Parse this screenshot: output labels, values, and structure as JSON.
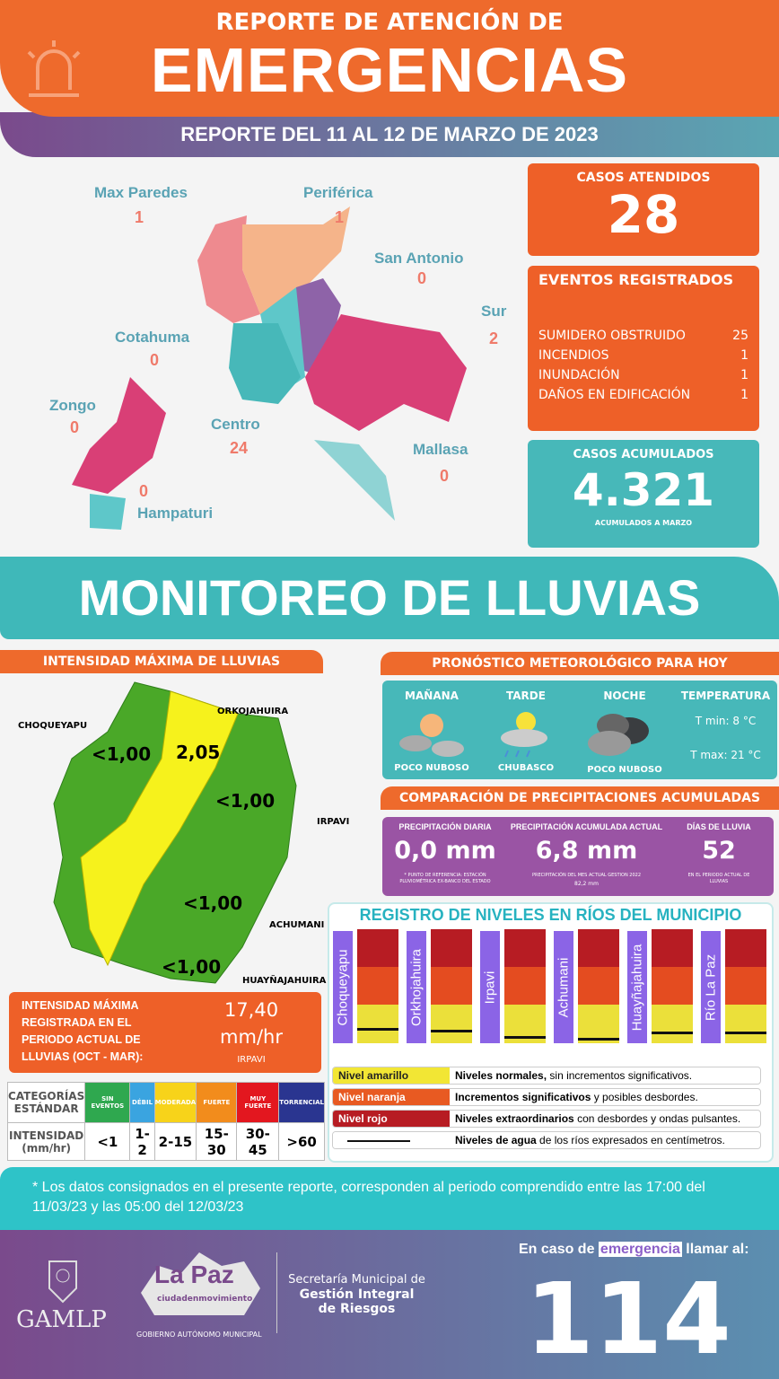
{
  "header": {
    "line1": "REPORTE DE ATENCIÓN DE",
    "line2": "EMERGENCIAS",
    "period": "REPORTE DEL 11 AL 12 DE MARZO DE 2023",
    "icon": "siren-icon"
  },
  "zones": [
    {
      "name": "Max Paredes",
      "value": "1",
      "color": "#ee8a8f"
    },
    {
      "name": "Periférica",
      "value": "1",
      "color": "#f5b48a"
    },
    {
      "name": "San Antonio",
      "value": "0",
      "color": "#8e63a8"
    },
    {
      "name": "Sur",
      "value": "2",
      "color": "#d93f76"
    },
    {
      "name": "Cotahuma",
      "value": "0",
      "color": "#5ec7c9"
    },
    {
      "name": "Centro",
      "value": "24",
      "color": "#47b8b9"
    },
    {
      "name": "Zongo",
      "value": "0",
      "color": "#d93f76"
    },
    {
      "name": "Mallasa",
      "value": "0",
      "color": "#8fd3d4"
    },
    {
      "name": "Hampaturi",
      "value": "0",
      "color": "#5ec7c9"
    }
  ],
  "casos_atendidos": {
    "label": "CASOS ATENDIDOS",
    "value": "28"
  },
  "eventos": {
    "label": "EVENTOS REGISTRADOS",
    "items": [
      {
        "name": "SUMIDERO OBSTRUIDO",
        "value": "25"
      },
      {
        "name": "INCENDIOS",
        "value": "1"
      },
      {
        "name": "INUNDACIÓN",
        "value": "1"
      },
      {
        "name": "DAÑOS EN EDIFICACIÓN",
        "value": "1"
      }
    ]
  },
  "acumulados": {
    "label": "CASOS ACUMULADOS",
    "value": "4.321",
    "note": "ACUMULADOS A MARZO"
  },
  "monitoreo": {
    "title": "MONITOREO DE LLUVIAS"
  },
  "intensidad": {
    "title": "INTENSIDAD MÁXIMA  DE LLUVIAS",
    "basins": [
      {
        "name": "CHOQUEYAPU",
        "value": "<1,00"
      },
      {
        "name": "ORKOJAHUIRA",
        "value": "2,05"
      },
      {
        "name": "IRPAVI",
        "value": "<1,00"
      },
      {
        "name": "ACHUMANI",
        "value": "<1,00"
      },
      {
        "name": "HUAYÑAJAHUIRA",
        "value": "<1,00"
      }
    ],
    "max_label": "INTENSIDAD MÁXIMA REGISTRADA EN EL PERIODO ACTUAL DE LLUVIAS (OCT - MAR):",
    "max_value": "17,40",
    "max_unit": "mm/hr",
    "max_station": "IRPAVI"
  },
  "categorias": {
    "row1_label": "CATEGORÍAS ESTÁNDAR",
    "row2_label": "INTENSIDAD (mm/hr)",
    "items": [
      {
        "name": "SIN EVENTOS",
        "range": "<1",
        "color": "#2fa84f"
      },
      {
        "name": "DÉBIL",
        "range": "1-2",
        "color": "#3aa4e0"
      },
      {
        "name": "MODERADA",
        "range": "2-15",
        "color": "#f7d31a"
      },
      {
        "name": "FUERTE",
        "range": "15-30",
        "color": "#f28c1c"
      },
      {
        "name": "MUY FUERTE",
        "range": "30-45",
        "color": "#e3171f"
      },
      {
        "name": "TORRENCIAL",
        "range": ">60",
        "color": "#2a3590"
      }
    ]
  },
  "pronostico": {
    "title": "PRONÓSTICO METEOROLÓGICO PARA HOY",
    "periods": [
      {
        "name": "MAÑANA",
        "state": "POCO NUBOSO",
        "icon": "sun-clouds-icon"
      },
      {
        "name": "TARDE",
        "state": "CHUBASCO",
        "icon": "sun-rain-cloud-icon"
      },
      {
        "name": "NOCHE",
        "state": "POCO NUBOSO",
        "icon": "dark-clouds-icon"
      }
    ],
    "temp_label": "TEMPERATURA",
    "tmin": "T min:  8 °C",
    "tmax": "T max: 21 °C"
  },
  "comparacion": {
    "title": "COMPARACIÓN DE PRECIPITACIONES ACUMULADAS",
    "diaria": {
      "label": "PRECIPITACIÓN DIARIA",
      "value": "0,0 mm",
      "note": "* PUNTO DE REFERENCIA: ESTACIÓN PLUVIOMÉTRICA EX-BANCO DEL ESTADO"
    },
    "acumulada": {
      "label": "PRECIPITACIÓN ACUMULADA ACTUAL",
      "value": "6,8 mm",
      "note": "PRECIPITACIÓN DEL MES ACTUAL  GESTION 2022",
      "note2": "82,2 mm"
    },
    "dias": {
      "label": "DÍAS DE LLUVIA",
      "value": "52",
      "note": "EN EL PERIODO ACTUAL DE LLUVIAS"
    }
  },
  "rios": {
    "title": "REGISTRO DE NIVELES EN RÍOS DEL MUNICIPIO",
    "items": [
      {
        "name": "Choqueyapu",
        "level": 0.13
      },
      {
        "name": "Orkhojahuira",
        "level": 0.12
      },
      {
        "name": "Irpavi",
        "level": 0.06
      },
      {
        "name": "Achumani",
        "level": 0.05
      },
      {
        "name": "Huayñajahuira",
        "level": 0.1
      },
      {
        "name": "Río La Paz",
        "level": 0.1
      }
    ],
    "legend": [
      {
        "key": "Nivel amarillo",
        "bold": "Niveles normales,",
        "rest": " sin incrementos significativos.",
        "color": "#f2e634",
        "text": "#222"
      },
      {
        "key": "Nivel naranja",
        "bold": "Incrementos significativos",
        "rest": " y posibles desbordes.",
        "color": "#e85a22",
        "text": "#fff"
      },
      {
        "key": "Nivel rojo",
        "bold": "Niveles extraordinarios",
        "rest": " con desbordes y ondas pulsantes.",
        "color": "#b71c23",
        "text": "#fff"
      },
      {
        "key": "",
        "bold": "Niveles de agua",
        "rest": " de los ríos expresados en centímetros.",
        "color": "#ffffff",
        "text": "#222"
      }
    ]
  },
  "disclaimer": "* Los datos consignados en el presente reporte, corresponden al periodo comprendido entre las 17:00 del 11/03/23 y las 05:00 del 12/03/23",
  "footer": {
    "gamlp": "GAMLP",
    "lapaz": "La Paz",
    "lapaz_sub": "ciudadenmovimiento",
    "gob": "GOBIERNO AUTÓNOMO MUNICIPAL",
    "sec1": "Secretaría Municipal de",
    "sec2": "Gestión Integral",
    "sec3": "de Riesgos",
    "call_pre": "En caso de ",
    "call_hl": "emergencia",
    "call_post": " llamar al:",
    "phone": "114"
  }
}
